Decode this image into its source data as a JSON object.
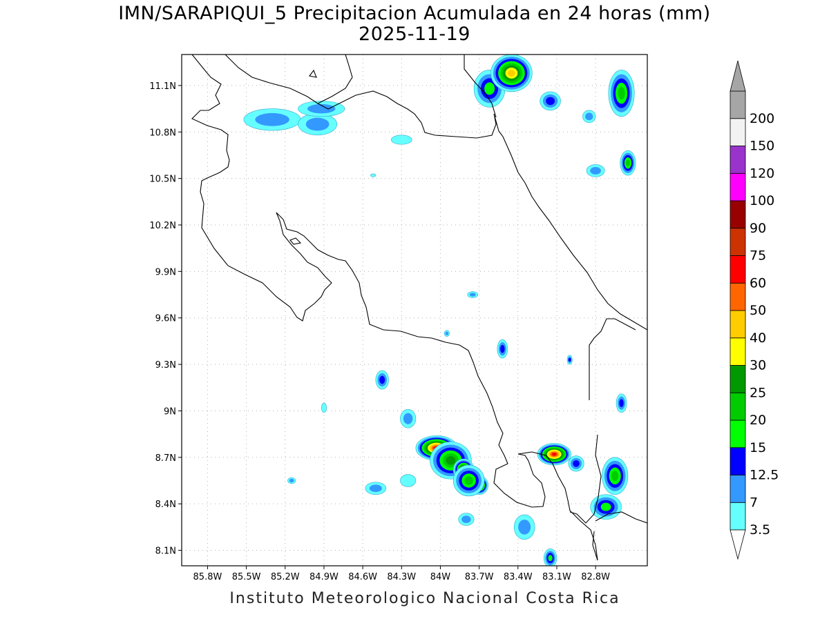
{
  "title_line1": "IMN/SARAPIQUI_5 Precipitacion Acumulada en 24 horas (mm)",
  "title_line2": "2025-11-19",
  "credit": "Instituto Meteorologico Nacional Costa Rica",
  "map": {
    "lon_range": [
      -86.0,
      -82.4
    ],
    "lat_range": [
      8.0,
      11.3
    ],
    "lon_ticks": [
      {
        "value": -85.8,
        "label": "85.8W"
      },
      {
        "value": -85.5,
        "label": "85.5W"
      },
      {
        "value": -85.2,
        "label": "85.2W"
      },
      {
        "value": -84.9,
        "label": "84.9W"
      },
      {
        "value": -84.6,
        "label": "84.6W"
      },
      {
        "value": -84.3,
        "label": "84.3W"
      },
      {
        "value": -84.0,
        "label": "84W"
      },
      {
        "value": -83.7,
        "label": "83.7W"
      },
      {
        "value": -83.4,
        "label": "83.4W"
      },
      {
        "value": -83.1,
        "label": "83.1W"
      },
      {
        "value": -82.8,
        "label": "82.8W"
      }
    ],
    "lat_ticks": [
      {
        "value": 8.1,
        "label": "8.1N"
      },
      {
        "value": 8.4,
        "label": "8.4N"
      },
      {
        "value": 8.7,
        "label": "8.7N"
      },
      {
        "value": 9.0,
        "label": "9N"
      },
      {
        "value": 9.3,
        "label": "9.3N"
      },
      {
        "value": 9.6,
        "label": "9.6N"
      },
      {
        "value": 9.9,
        "label": "9.9N"
      },
      {
        "value": 10.2,
        "label": "10.2N"
      },
      {
        "value": 10.5,
        "label": "10.5N"
      },
      {
        "value": 10.8,
        "label": "10.8N"
      },
      {
        "value": 11.1,
        "label": "11.1N"
      }
    ],
    "grid": true,
    "coastline_color": "#000000",
    "precip_cells": [
      {
        "lon": -84.03,
        "lat": 8.76,
        "rx": 0.16,
        "ry": 0.08,
        "level": 60
      },
      {
        "lon": -83.92,
        "lat": 8.68,
        "rx": 0.16,
        "ry": 0.12,
        "level": 25
      },
      {
        "lon": -83.82,
        "lat": 8.62,
        "rx": 0.08,
        "ry": 0.07,
        "level": 40
      },
      {
        "lon": -83.7,
        "lat": 8.52,
        "rx": 0.07,
        "ry": 0.06,
        "level": 40
      },
      {
        "lon": -83.78,
        "lat": 8.55,
        "rx": 0.12,
        "ry": 0.1,
        "level": 20
      },
      {
        "lon": -83.12,
        "lat": 8.72,
        "rx": 0.13,
        "ry": 0.07,
        "level": 60
      },
      {
        "lon": -82.65,
        "lat": 8.58,
        "rx": 0.1,
        "ry": 0.12,
        "level": 20
      },
      {
        "lon": -82.72,
        "lat": 8.38,
        "rx": 0.12,
        "ry": 0.08,
        "level": 15
      },
      {
        "lon": -83.62,
        "lat": 11.08,
        "rx": 0.12,
        "ry": 0.12,
        "level": 15
      },
      {
        "lon": -83.45,
        "lat": 11.18,
        "rx": 0.16,
        "ry": 0.12,
        "level": 40
      },
      {
        "lon": -82.6,
        "lat": 11.05,
        "rx": 0.1,
        "ry": 0.15,
        "level": 20
      },
      {
        "lon": -82.55,
        "lat": 10.6,
        "rx": 0.06,
        "ry": 0.08,
        "level": 20
      },
      {
        "lon": -85.3,
        "lat": 10.88,
        "rx": 0.22,
        "ry": 0.07,
        "level": 7
      },
      {
        "lon": -84.95,
        "lat": 10.85,
        "rx": 0.15,
        "ry": 0.07,
        "level": 7
      },
      {
        "lon": -84.92,
        "lat": 10.95,
        "rx": 0.18,
        "ry": 0.05,
        "level": 7
      },
      {
        "lon": -84.45,
        "lat": 9.2,
        "rx": 0.05,
        "ry": 0.06,
        "level": 12.5
      },
      {
        "lon": -83.52,
        "lat": 9.4,
        "rx": 0.04,
        "ry": 0.06,
        "level": 12.5
      },
      {
        "lon": -82.95,
        "lat": 8.66,
        "rx": 0.06,
        "ry": 0.05,
        "level": 12.5
      },
      {
        "lon": -83.35,
        "lat": 8.25,
        "rx": 0.08,
        "ry": 0.08,
        "level": 7
      },
      {
        "lon": -83.15,
        "lat": 8.05,
        "rx": 0.05,
        "ry": 0.06,
        "level": 15
      },
      {
        "lon": -83.8,
        "lat": 8.3,
        "rx": 0.06,
        "ry": 0.04,
        "level": 7
      },
      {
        "lon": -83.15,
        "lat": 11.0,
        "rx": 0.08,
        "ry": 0.06,
        "level": 12.5
      },
      {
        "lon": -82.85,
        "lat": 10.9,
        "rx": 0.05,
        "ry": 0.04,
        "level": 7
      },
      {
        "lon": -82.8,
        "lat": 10.55,
        "rx": 0.07,
        "ry": 0.04,
        "level": 7
      },
      {
        "lon": -84.9,
        "lat": 9.02,
        "rx": 0.02,
        "ry": 0.03,
        "level": 3.5
      },
      {
        "lon": -85.15,
        "lat": 8.55,
        "rx": 0.03,
        "ry": 0.02,
        "level": 7
      },
      {
        "lon": -84.5,
        "lat": 8.5,
        "rx": 0.08,
        "ry": 0.04,
        "level": 7
      },
      {
        "lon": -84.25,
        "lat": 8.55,
        "rx": 0.06,
        "ry": 0.04,
        "level": 3.5
      },
      {
        "lon": -83.95,
        "lat": 9.5,
        "rx": 0.02,
        "ry": 0.02,
        "level": 7
      },
      {
        "lon": -83.75,
        "lat": 9.75,
        "rx": 0.04,
        "ry": 0.02,
        "level": 7
      },
      {
        "lon": -84.25,
        "lat": 8.95,
        "rx": 0.06,
        "ry": 0.06,
        "level": 7
      },
      {
        "lon": -82.6,
        "lat": 9.05,
        "rx": 0.04,
        "ry": 0.06,
        "level": 12.5
      },
      {
        "lon": -83.0,
        "lat": 9.33,
        "rx": 0.02,
        "ry": 0.03,
        "level": 12.5
      },
      {
        "lon": -84.52,
        "lat": 10.52,
        "rx": 0.02,
        "ry": 0.01,
        "level": 3.5
      },
      {
        "lon": -84.3,
        "lat": 10.75,
        "rx": 0.08,
        "ry": 0.03,
        "level": 3.5
      }
    ]
  },
  "legend": {
    "bins": [
      {
        "label": "3.5",
        "color": "#66ffff"
      },
      {
        "label": "7",
        "color": "#3399ff"
      },
      {
        "label": "12.5",
        "color": "#0000ff"
      },
      {
        "label": "15",
        "color": "#00ff00"
      },
      {
        "label": "20",
        "color": "#00cc00"
      },
      {
        "label": "25",
        "color": "#009900"
      },
      {
        "label": "30",
        "color": "#ffff00"
      },
      {
        "label": "40",
        "color": "#ffcc00"
      },
      {
        "label": "50",
        "color": "#ff6600"
      },
      {
        "label": "60",
        "color": "#ff0000"
      },
      {
        "label": "75",
        "color": "#cc3300"
      },
      {
        "label": "90",
        "color": "#990000"
      },
      {
        "label": "100",
        "color": "#ff00ff"
      },
      {
        "label": "120",
        "color": "#9933cc"
      },
      {
        "label": "150",
        "color": "#f2f2f2"
      },
      {
        "label": "200",
        "color": "#a6a6a6"
      }
    ],
    "below_color": "#ffffff",
    "above_color": "#a6a6a6"
  }
}
